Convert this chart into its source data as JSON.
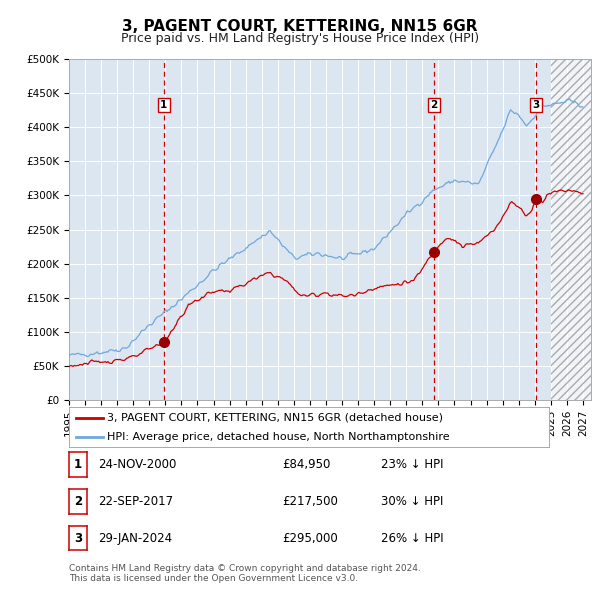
{
  "title": "3, PAGENT COURT, KETTERING, NN15 6GR",
  "subtitle": "Price paid vs. HM Land Registry's House Price Index (HPI)",
  "plot_bg_color": "#dce6f1",
  "hpi_line_color": "#6fa8dc",
  "price_line_color": "#cc0000",
  "sale_marker_color": "#990000",
  "vline_color": "#cc0000",
  "ylim": [
    0,
    500000
  ],
  "yticks": [
    0,
    50000,
    100000,
    150000,
    200000,
    250000,
    300000,
    350000,
    400000,
    450000,
    500000
  ],
  "ytick_labels": [
    "£0",
    "£50K",
    "£100K",
    "£150K",
    "£200K",
    "£250K",
    "£300K",
    "£350K",
    "£400K",
    "£450K",
    "£500K"
  ],
  "xlim_start": 1995.0,
  "xlim_end": 2027.5,
  "xtick_years": [
    1995,
    1996,
    1997,
    1998,
    1999,
    2000,
    2001,
    2002,
    2003,
    2004,
    2005,
    2006,
    2007,
    2008,
    2009,
    2010,
    2011,
    2012,
    2013,
    2014,
    2015,
    2016,
    2017,
    2018,
    2019,
    2020,
    2021,
    2022,
    2023,
    2024,
    2025,
    2026,
    2027
  ],
  "sale_dates": [
    2000.9,
    2017.72,
    2024.08
  ],
  "sale_prices": [
    84950,
    217500,
    295000
  ],
  "sale_labels": [
    "1",
    "2",
    "3"
  ],
  "sale_label_pcts": [
    "23% ↓ HPI",
    "30% ↓ HPI",
    "26% ↓ HPI"
  ],
  "sale_date_strs": [
    "24-NOV-2000",
    "22-SEP-2017",
    "29-JAN-2024"
  ],
  "future_hatch_start": 2025.0,
  "legend_line1": "3, PAGENT COURT, KETTERING, NN15 6GR (detached house)",
  "legend_line2": "HPI: Average price, detached house, North Northamptonshire",
  "footer": "Contains HM Land Registry data © Crown copyright and database right 2024.\nThis data is licensed under the Open Government Licence v3.0.",
  "title_fontsize": 11,
  "subtitle_fontsize": 9,
  "tick_fontsize": 7.5,
  "legend_fontsize": 8,
  "table_fontsize": 8.5,
  "footer_fontsize": 6.5
}
